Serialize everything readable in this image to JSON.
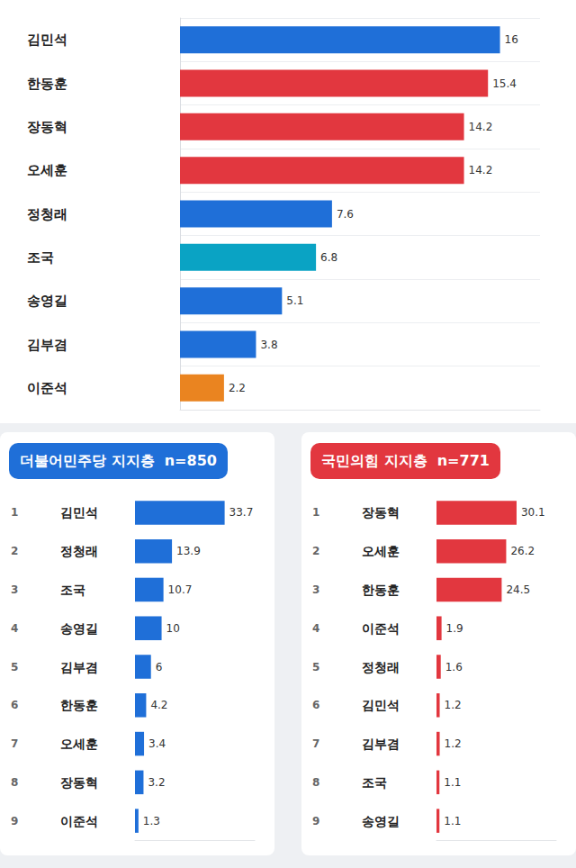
{
  "chart_data": [
    {
      "type": "bar",
      "orientation": "horizontal",
      "categories": [
        "김민석",
        "한동훈",
        "장동혁",
        "오세훈",
        "정청래",
        "조국",
        "송영길",
        "김부겸",
        "이준석"
      ],
      "values": [
        16,
        15.4,
        14.2,
        14.2,
        7.6,
        6.8,
        5.1,
        3.8,
        2.2
      ],
      "colors": [
        "#1f6fd8",
        "#e2373f",
        "#e2373f",
        "#e2373f",
        "#1f6fd8",
        "#0aa3c4",
        "#1f6fd8",
        "#1f6fd8",
        "#ea8420"
      ],
      "xlim": [
        0,
        18
      ],
      "data_labels": true,
      "tick_labels": "y",
      "grid": true
    },
    {
      "type": "bar",
      "orientation": "horizontal",
      "title": "더불어민주당 지지층  n=850",
      "ranks": [
        1,
        2,
        3,
        4,
        5,
        6,
        7,
        8,
        9
      ],
      "categories": [
        "김민석",
        "정청래",
        "조국",
        "송영길",
        "김부겸",
        "한동훈",
        "오세훈",
        "장동혁",
        "이준석"
      ],
      "values": [
        33.7,
        13.9,
        10.7,
        10,
        6,
        4.2,
        3.4,
        3.2,
        1.3
      ],
      "color": "#1f6fd8",
      "xlim": [
        0,
        45
      ],
      "data_labels": true,
      "tick_labels": "y"
    },
    {
      "type": "bar",
      "orientation": "horizontal",
      "title": "국민의힘 지지층  n=771",
      "ranks": [
        1,
        2,
        3,
        4,
        5,
        6,
        7,
        8,
        9
      ],
      "categories": [
        "장동혁",
        "오세훈",
        "한동훈",
        "이준석",
        "정청래",
        "김민석",
        "김부겸",
        "조국",
        "송영길"
      ],
      "values": [
        30.1,
        26.2,
        24.5,
        1.9,
        1.6,
        1.2,
        1.2,
        1.1,
        1.1
      ],
      "color": "#e2373f",
      "xlim": [
        0,
        45
      ],
      "data_labels": true,
      "tick_labels": "y"
    }
  ]
}
